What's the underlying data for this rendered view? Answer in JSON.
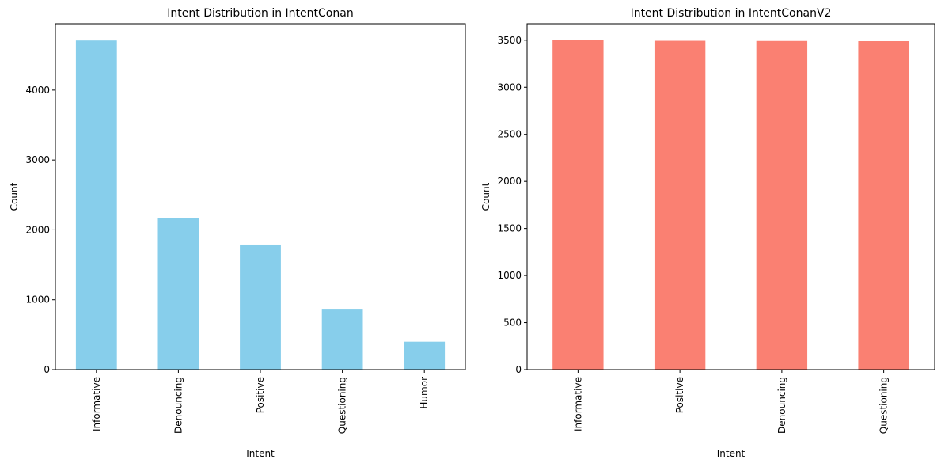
{
  "chart_data": [
    {
      "type": "bar",
      "title": "Intent Distribution in IntentConan",
      "xlabel": "Intent",
      "ylabel": "Count",
      "categories": [
        "Informative",
        "Denouncing",
        "Positive",
        "Questioning",
        "Humor"
      ],
      "values": [
        4710,
        2170,
        1790,
        860,
        400
      ],
      "ylim": [
        0,
        4950
      ],
      "yticks": [
        0,
        1000,
        2000,
        3000,
        4000
      ],
      "color": "#87ceeb",
      "grid": false,
      "legend": "none"
    },
    {
      "type": "bar",
      "title": "Intent Distribution in IntentConanV2",
      "xlabel": "Intent",
      "ylabel": "Count",
      "categories": [
        "Informative",
        "Positive",
        "Denouncing",
        "Questioning"
      ],
      "values": [
        3500,
        3494,
        3492,
        3490
      ],
      "ylim": [
        0,
        3675
      ],
      "yticks": [
        0,
        500,
        1000,
        1500,
        2000,
        2500,
        3000,
        3500
      ],
      "color": "#fa8072",
      "grid": false,
      "legend": "none"
    }
  ]
}
